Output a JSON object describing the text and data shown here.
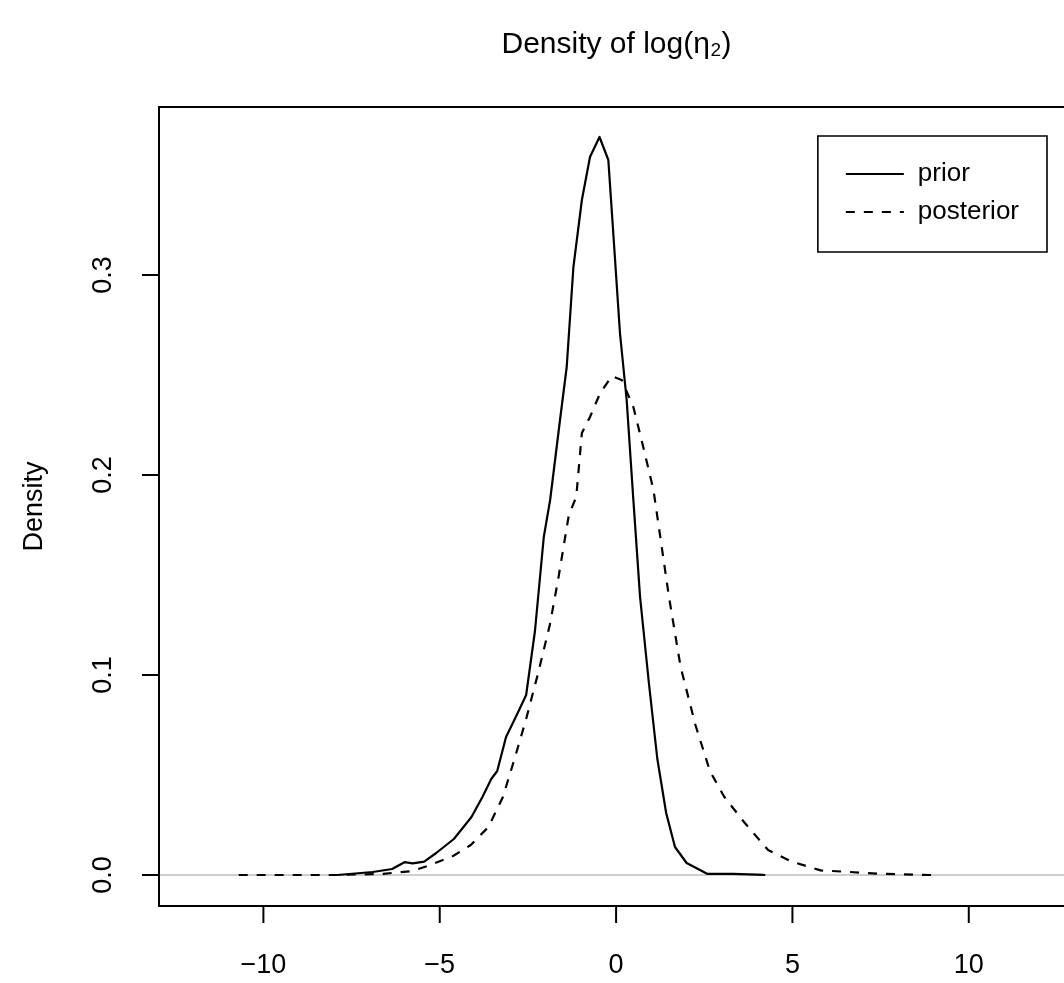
{
  "chart_data": {
    "type": "line",
    "title": "Density of log(η₂)",
    "ylabel": "Density",
    "xlim": [
      -12.96,
      12.7
    ],
    "ylim": [
      -0.0155,
      0.384
    ],
    "xticks": [
      {
        "value": -10,
        "label": "−10"
      },
      {
        "value": -5,
        "label": "−5"
      },
      0,
      5,
      10
    ],
    "yticks": [
      {
        "value": 0,
        "label": "0.0"
      },
      {
        "value": 0.1,
        "label": "0.1"
      },
      {
        "value": 0.2,
        "label": "0.2"
      },
      {
        "value": 0.3,
        "label": "0.3"
      }
    ],
    "legend": "top right",
    "marker": "none",
    "ref_lines": [
      {
        "axis": "y",
        "value": 0,
        "color": "#bebebe"
      }
    ],
    "series": [
      {
        "name": "prior",
        "color": "#000000",
        "line_style": "solid",
        "x": [
          -7.9,
          -6.9,
          -6.35,
          -6.0,
          -5.77,
          -5.44,
          -5.1,
          -4.6,
          -4.1,
          -3.79,
          -3.54,
          -3.37,
          -3.12,
          -2.79,
          -2.55,
          -2.3,
          -2.05,
          -1.87,
          -1.59,
          -1.4,
          -1.21,
          -0.97,
          -0.74,
          -0.47,
          -0.22,
          -0.08,
          0.11,
          0.3,
          0.49,
          0.68,
          0.93,
          1.17,
          1.42,
          1.67,
          2.0,
          2.58,
          3.32,
          4.23
        ],
        "values": [
          0,
          0.0015,
          0.003,
          0.0064,
          0.0058,
          0.0067,
          0.011,
          0.018,
          0.029,
          0.039,
          0.048,
          0.052,
          0.069,
          0.081,
          0.09,
          0.122,
          0.169,
          0.1875,
          0.2275,
          0.254,
          0.304,
          0.3375,
          0.359,
          0.369,
          0.3575,
          0.321,
          0.271,
          0.2375,
          0.1875,
          0.139,
          0.096,
          0.058,
          0.031,
          0.014,
          0.006,
          0.0006,
          0.0006,
          0
        ]
      },
      {
        "name": "posterior",
        "color": "#000000",
        "line_style": "dashed",
        "x": [
          -10.7,
          -7.9,
          -6.6,
          -5.77,
          -5.27,
          -4.61,
          -4.12,
          -3.62,
          -3.21,
          -2.88,
          -2.55,
          -2.21,
          -1.88,
          -1.64,
          -1.34,
          -1.13,
          -0.97,
          -0.74,
          -0.45,
          -0.12,
          0.16,
          0.49,
          0.77,
          1.06,
          1.5,
          1.83,
          2.25,
          2.66,
          3.07,
          3.65,
          4.31,
          4.98,
          5.8,
          6.63,
          7.45,
          8.94
        ],
        "values": [
          0,
          0,
          0.0006,
          0.002,
          0.005,
          0.0096,
          0.015,
          0.024,
          0.039,
          0.058,
          0.078,
          0.101,
          0.125,
          0.148,
          0.18,
          0.189,
          0.221,
          0.229,
          0.241,
          0.2495,
          0.2475,
          0.234,
          0.214,
          0.1925,
          0.139,
          0.104,
          0.075,
          0.052,
          0.039,
          0.026,
          0.0125,
          0.0067,
          0.0023,
          0.0015,
          0.0006,
          0
        ]
      }
    ]
  }
}
